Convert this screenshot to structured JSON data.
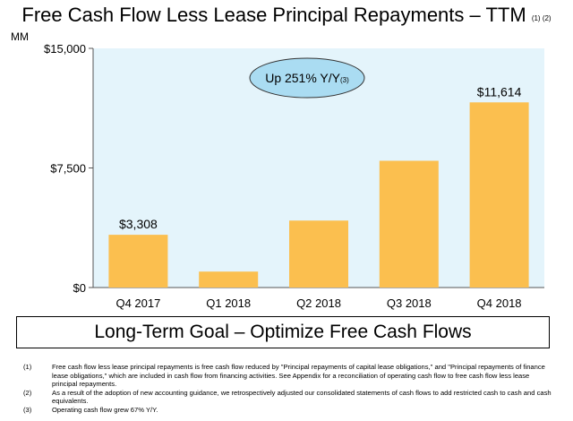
{
  "title": "Free Cash Flow Less Lease Principal Repayments – TTM",
  "title_refs": "(1) (2)",
  "unit": "MM",
  "goal_text": "Long-Term Goal – Optimize Free Cash Flows",
  "colors": {
    "bar": "#FBBF4F",
    "plot_bg": "#E4F4FB",
    "callout_fill": "#AADCF2"
  },
  "chart_data": {
    "type": "bar",
    "title": "Free Cash Flow Less Lease Principal Repayments – TTM",
    "ylabel": "MM",
    "categories": [
      "Q4 2017",
      "Q1 2018",
      "Q2 2018",
      "Q3 2018",
      "Q4 2018"
    ],
    "values": [
      3308,
      1000,
      4200,
      7950,
      11614
    ],
    "data_labels": [
      "$3,308",
      "",
      "",
      "",
      "$11,614"
    ],
    "ylim": [
      0,
      15000
    ],
    "y_ticks": [
      0,
      7500,
      15000
    ],
    "y_tick_labels": [
      "$0",
      "$7,500",
      "$15,000"
    ],
    "grid": false,
    "annotation": {
      "text": "Up 251% Y/Y",
      "ref": "(3)"
    }
  },
  "footnotes": [
    {
      "num": "(1)",
      "text": "Free cash flow less lease principal repayments is free cash flow reduced by \"Principal repayments of capital lease obligations,\" and \"Principal repayments of finance lease obligations,\" which are included in cash flow from financing activities. See Appendix for a reconciliation of operating cash flow to free cash flow less lease principal repayments."
    },
    {
      "num": "(2)",
      "text": "As a result of the adoption of new accounting guidance, we retrospectively adjusted our consolidated statements of cash flows to add restricted cash to cash and cash equivalents."
    },
    {
      "num": "(3)",
      "text": "Operating cash flow grew 67% Y/Y."
    }
  ]
}
